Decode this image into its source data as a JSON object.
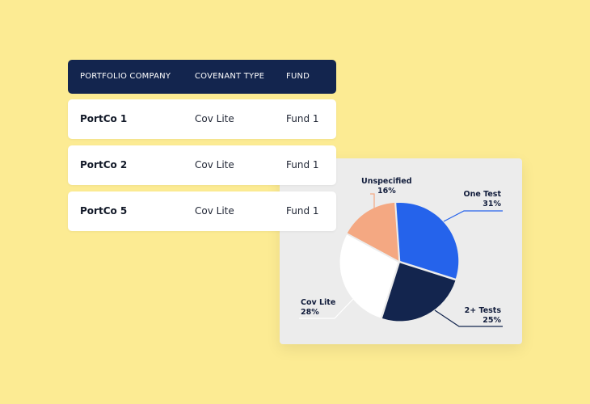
{
  "table": {
    "headers": [
      "PORTFOLIO COMPANY",
      "COVENANT TYPE",
      "FUND"
    ],
    "rows": [
      {
        "company": "PortCo 1",
        "covenant": "Cov Lite",
        "fund": "Fund 1"
      },
      {
        "company": "PortCo 2",
        "covenant": "Cov Lite",
        "fund": "Fund 1"
      },
      {
        "company": "PortCo 5",
        "covenant": "Cov Lite",
        "fund": "Fund 1"
      }
    ]
  },
  "colors": {
    "background": "#FCEB93",
    "header_bg": "#13254E",
    "one_test": "#2563EB",
    "two_plus_tests": "#13254E",
    "cov_lite": "#FFFFFF",
    "unspecified": "#F4A882"
  },
  "chart_data": {
    "type": "pie",
    "slices": [
      {
        "label": "One Test",
        "pct_label": "31%",
        "value": 31,
        "color": "#2563EB"
      },
      {
        "label": "2+ Tests",
        "pct_label": "25%",
        "value": 25,
        "color": "#13254E"
      },
      {
        "label": "Cov Lite",
        "pct_label": "28%",
        "value": 28,
        "color": "#FFFFFF"
      },
      {
        "label": "Unspecified",
        "pct_label": "16%",
        "value": 16,
        "color": "#F4A882"
      }
    ]
  }
}
